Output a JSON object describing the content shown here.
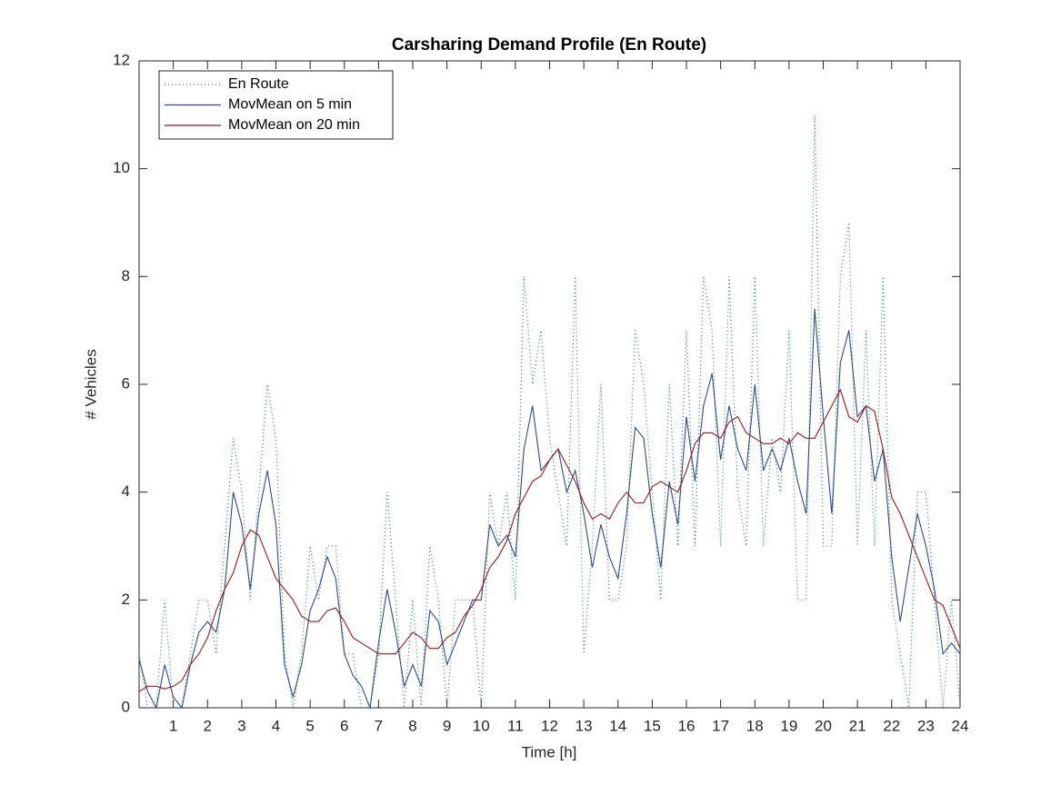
{
  "chart_data": {
    "type": "line",
    "title": "Carsharing Demand Profile (En Route)",
    "xlabel": "Time [h]",
    "ylabel": "# Vehicles",
    "x": [
      0,
      0.25,
      0.5,
      0.75,
      1,
      1.25,
      1.5,
      1.75,
      2,
      2.25,
      2.5,
      2.75,
      3,
      3.25,
      3.5,
      3.75,
      4,
      4.25,
      4.5,
      4.75,
      5,
      5.25,
      5.5,
      5.75,
      6,
      6.25,
      6.5,
      6.75,
      7,
      7.25,
      7.5,
      7.75,
      8,
      8.25,
      8.5,
      8.75,
      9,
      9.25,
      9.5,
      9.75,
      10,
      10.25,
      10.5,
      10.75,
      11,
      11.25,
      11.5,
      11.75,
      12,
      12.25,
      12.5,
      12.75,
      13,
      13.25,
      13.5,
      13.75,
      14,
      14.25,
      14.5,
      14.75,
      15,
      15.25,
      15.5,
      15.75,
      16,
      16.25,
      16.5,
      16.75,
      17,
      17.25,
      17.5,
      17.75,
      18,
      18.25,
      18.5,
      18.75,
      19,
      19.25,
      19.5,
      19.75,
      20,
      20.25,
      20.5,
      20.75,
      21,
      21.25,
      21.5,
      21.75,
      22,
      22.25,
      22.5,
      22.75,
      23,
      23.25,
      23.5,
      23.75,
      24
    ],
    "series": [
      {
        "name": "En Route",
        "color": "#1f8a70",
        "dash": "dotted",
        "values": [
          1,
          0,
          0,
          2,
          0,
          0,
          1,
          2,
          2,
          1,
          3,
          5,
          4,
          2,
          4,
          6,
          5,
          1,
          0,
          1,
          3,
          2,
          3,
          3,
          1,
          1,
          0,
          0,
          1,
          4,
          2,
          0,
          2,
          0,
          3,
          2,
          0,
          2,
          2,
          2,
          0,
          4,
          3,
          4,
          2,
          8,
          6,
          7,
          5,
          4,
          3,
          8,
          1,
          3,
          6,
          2,
          2,
          3,
          7,
          6,
          4,
          2,
          6,
          3,
          7,
          3,
          8,
          7,
          3,
          8,
          4,
          3,
          8,
          3,
          5,
          4,
          7,
          2,
          2,
          11,
          3,
          3,
          8,
          9,
          3,
          7,
          3,
          8,
          2,
          1,
          0,
          4,
          4,
          2,
          0,
          2,
          0
        ]
      },
      {
        "name": "MovMean on 5 min",
        "color": "#2b4a8f",
        "dash": "solid",
        "values": [
          0.9,
          0.3,
          0,
          0.8,
          0.2,
          0,
          0.8,
          1.4,
          1.6,
          1.4,
          2.2,
          4.0,
          3.4,
          2.2,
          3.6,
          4.4,
          3.4,
          0.8,
          0.2,
          0.8,
          1.8,
          2.2,
          2.8,
          2.4,
          1.0,
          0.6,
          0.4,
          0,
          1.2,
          2.2,
          1.4,
          0.4,
          0.8,
          0.4,
          1.8,
          1.6,
          0.8,
          1.2,
          1.6,
          2.0,
          2.0,
          3.4,
          3.0,
          3.2,
          2.8,
          4.8,
          5.6,
          4.4,
          4.6,
          4.8,
          4.0,
          4.4,
          3.6,
          2.6,
          3.4,
          2.8,
          2.4,
          3.6,
          5.2,
          5.0,
          3.6,
          2.6,
          4.2,
          3.4,
          5.4,
          4.2,
          5.6,
          6.2,
          4.6,
          5.6,
          4.8,
          4.4,
          6.0,
          4.4,
          4.8,
          4.4,
          5.0,
          4.2,
          3.6,
          7.4,
          5.4,
          3.6,
          6.4,
          7.0,
          5.4,
          5.6,
          4.2,
          4.8,
          2.8,
          1.6,
          2.6,
          3.6,
          3.0,
          2.2,
          1.0,
          1.2,
          1.0
        ]
      },
      {
        "name": "MovMean on 20 min",
        "color": "#a0141e",
        "dash": "solid",
        "values": [
          0.3,
          0.4,
          0.4,
          0.35,
          0.4,
          0.5,
          0.8,
          1.0,
          1.3,
          1.8,
          2.2,
          2.5,
          3.0,
          3.3,
          3.2,
          2.8,
          2.4,
          2.2,
          2.0,
          1.7,
          1.6,
          1.6,
          1.8,
          1.85,
          1.6,
          1.3,
          1.2,
          1.1,
          1.0,
          1.0,
          1.0,
          1.2,
          1.4,
          1.3,
          1.1,
          1.1,
          1.3,
          1.4,
          1.7,
          1.9,
          2.2,
          2.6,
          2.8,
          3.1,
          3.6,
          3.9,
          4.2,
          4.3,
          4.6,
          4.8,
          4.5,
          4.2,
          3.8,
          3.5,
          3.6,
          3.5,
          3.8,
          4.0,
          3.8,
          3.8,
          4.1,
          4.2,
          4.1,
          4.0,
          4.4,
          4.9,
          5.1,
          5.1,
          5.0,
          5.3,
          5.4,
          5.1,
          5.0,
          4.9,
          4.9,
          5.0,
          4.9,
          5.1,
          5.0,
          5.0,
          5.3,
          5.6,
          5.9,
          5.4,
          5.3,
          5.6,
          5.5,
          4.8,
          3.9,
          3.6,
          3.2,
          2.8,
          2.4,
          2.0,
          1.9,
          1.5,
          1.1
        ]
      }
    ],
    "xlim": [
      0,
      24
    ],
    "xticks": [
      1,
      2,
      3,
      4,
      5,
      6,
      7,
      8,
      9,
      10,
      11,
      12,
      13,
      14,
      15,
      16,
      17,
      18,
      19,
      20,
      21,
      22,
      23,
      24
    ],
    "ylim": [
      0,
      12
    ],
    "yticks": [
      0,
      2,
      4,
      6,
      8,
      10,
      12
    ],
    "grid": false,
    "legend": "upper left"
  }
}
